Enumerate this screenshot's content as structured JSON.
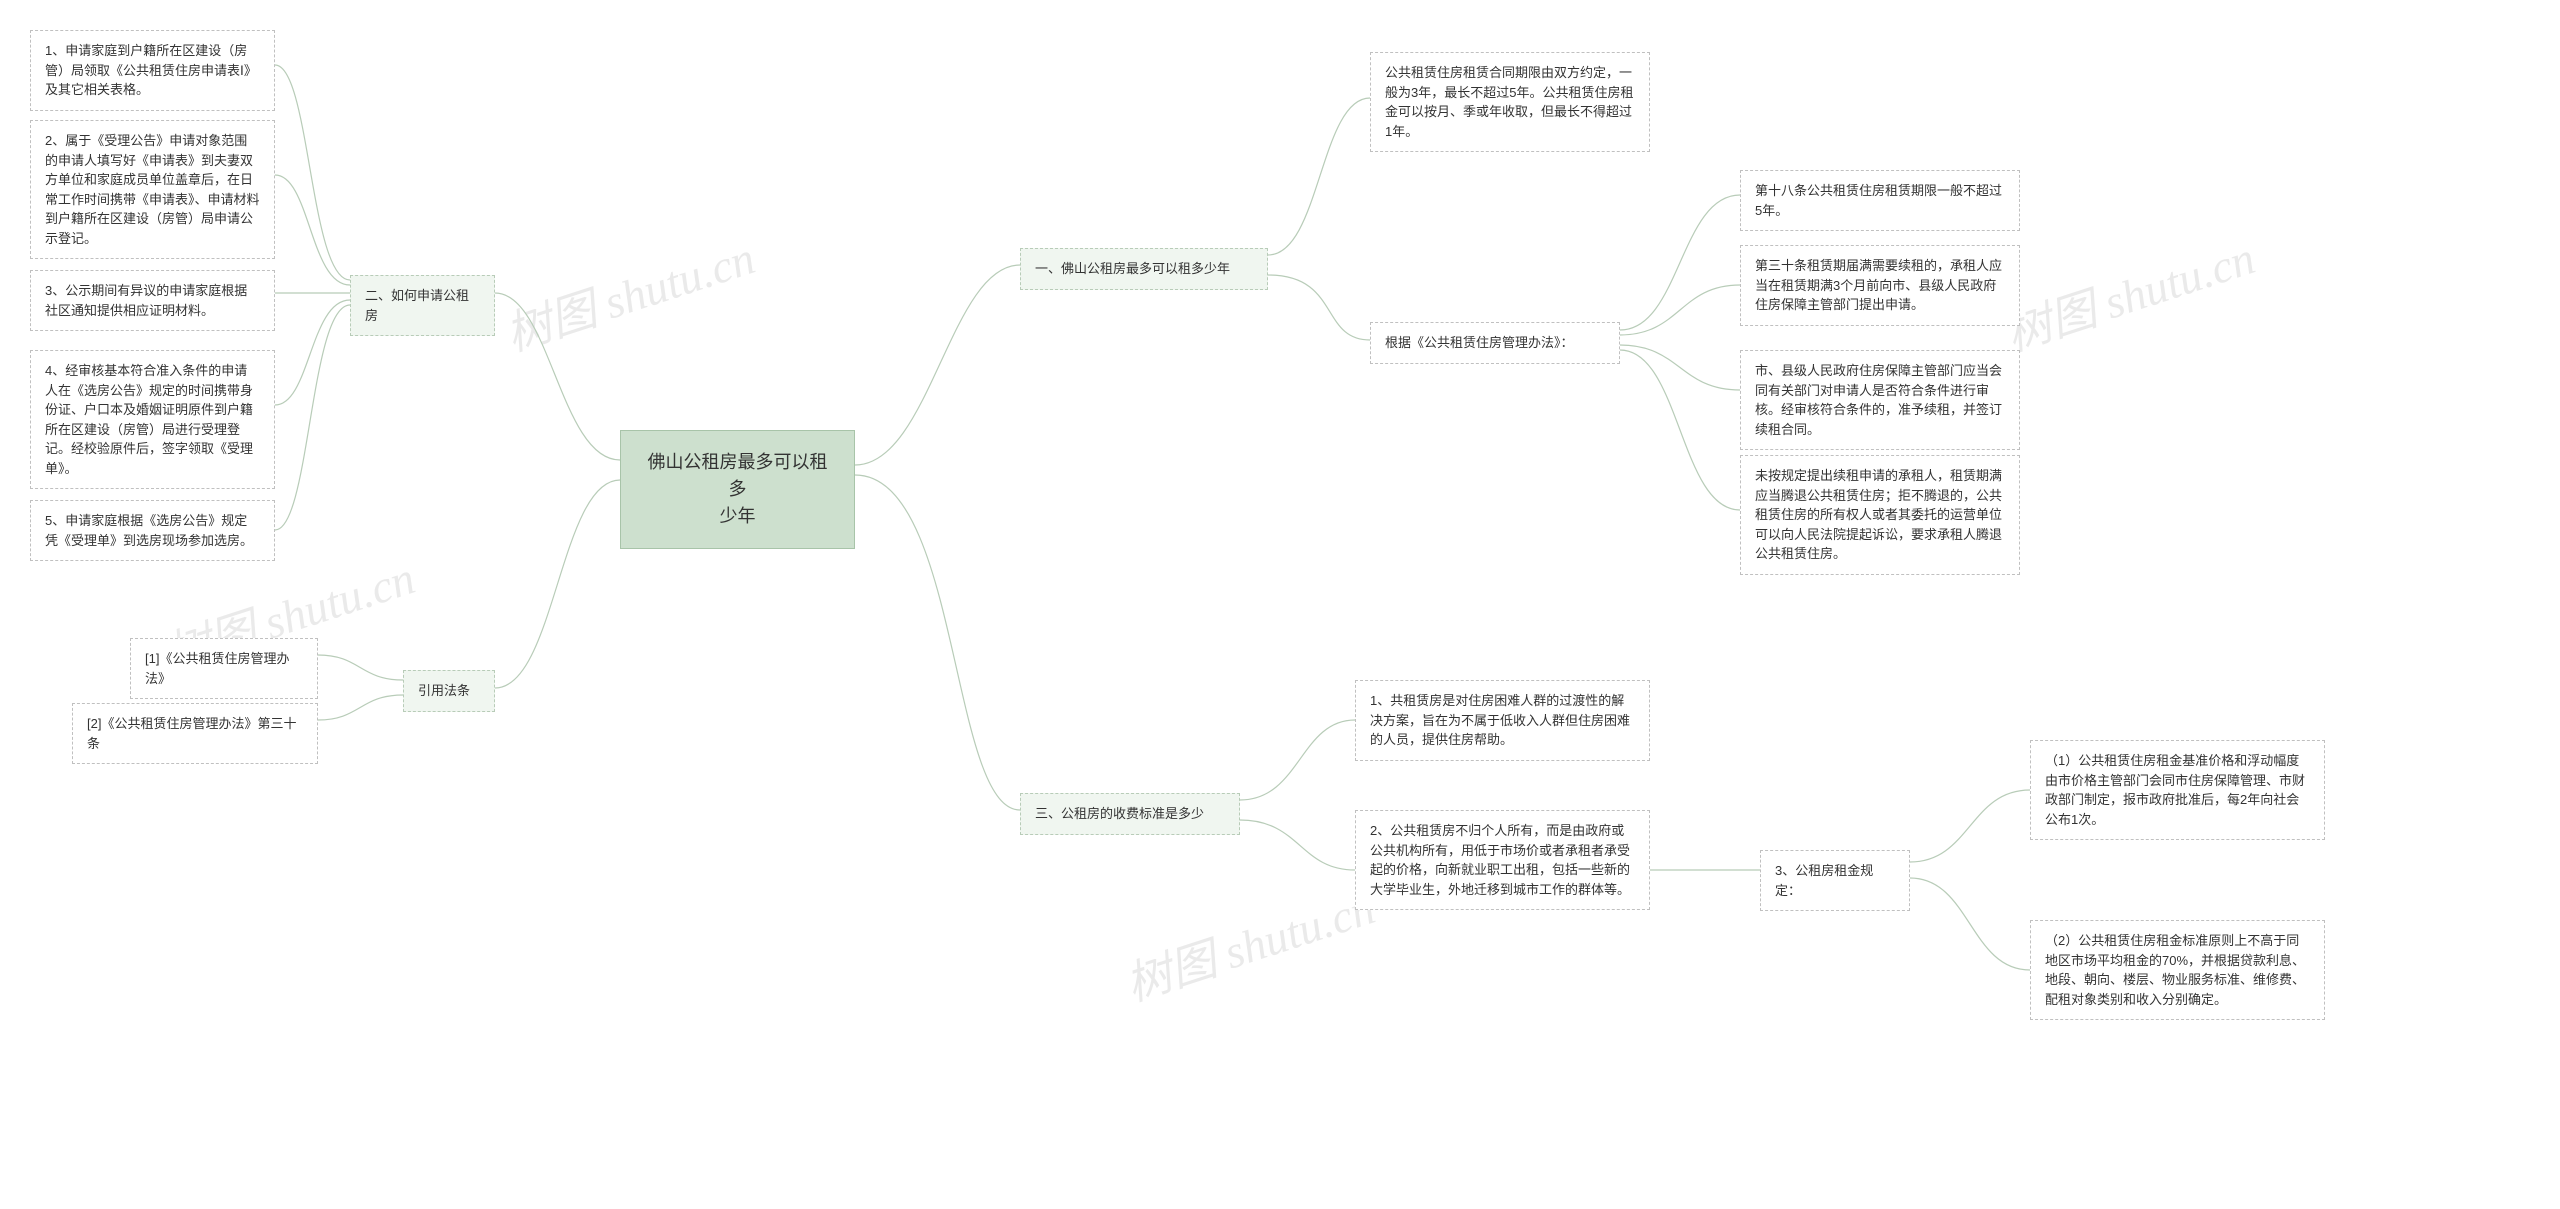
{
  "watermark_text": "树图 shutu.cn",
  "colors": {
    "center_bg": "#cde0ce",
    "center_border": "#a8c4a9",
    "branch_bg": "#f0f6f0",
    "branch_border": "#b8ccb8",
    "leaf_bg": "#ffffff",
    "leaf_border": "#c0c0c0",
    "connector": "#b8ccb8",
    "watermark": "#d9d9d9",
    "page_bg": "#ffffff",
    "text": "#333333"
  },
  "mindmap": {
    "type": "mindmap",
    "center": {
      "label": "佛山公租房最多可以租多\n少年"
    },
    "right": [
      {
        "label": "一、佛山公租房最多可以租多少年",
        "children": [
          {
            "label": "公共租赁住房租赁合同期限由双方约定，一般为3年，最长不超过5年。公共租赁住房租金可以按月、季或年收取，但最长不得超过1年。"
          },
          {
            "label": "根据《公共租赁住房管理办法》：",
            "children": [
              {
                "label": "第十八条公共租赁住房租赁期限一般不超过5年。"
              },
              {
                "label": "第三十条租赁期届满需要续租的，承租人应当在租赁期满3个月前向市、县级人民政府住房保障主管部门提出申请。"
              },
              {
                "label": "市、县级人民政府住房保障主管部门应当会同有关部门对申请人是否符合条件进行审核。经审核符合条件的，准予续租，并签订续租合同。"
              },
              {
                "label": "未按规定提出续租申请的承租人，租赁期满应当腾退公共租赁住房；拒不腾退的，公共租赁住房的所有权人或者其委托的运营单位可以向人民法院提起诉讼，要求承租人腾退公共租赁住房。"
              }
            ]
          }
        ]
      },
      {
        "label": "三、公租房的收费标准是多少",
        "children": [
          {
            "label": "1、共租赁房是对住房困难人群的过渡性的解决方案，旨在为不属于低收入人群但住房困难的人员，提供住房帮助。"
          },
          {
            "label": "2、公共租赁房不归个人所有，而是由政府或公共机构所有，用低于市场价或者承租者承受起的价格，向新就业职工出租，包括一些新的大学毕业生，外地迁移到城市工作的群体等。",
            "children": [
              {
                "label": "3、公租房租金规定：",
                "children": [
                  {
                    "label": "（1）公共租赁住房租金基准价格和浮动幅度由市价格主管部门会同市住房保障管理、市财政部门制定，报市政府批准后，每2年向社会公布1次。"
                  },
                  {
                    "label": "（2）公共租赁住房租金标准原则上不高于同地区市场平均租金的70%，并根据贷款利息、地段、朝向、楼层、物业服务标准、维修费、配租对象类别和收入分别确定。"
                  }
                ]
              }
            ]
          }
        ]
      }
    ],
    "left": [
      {
        "label": "二、如何申请公租房",
        "children": [
          {
            "label": "1、申请家庭到户籍所在区建设（房管）局领取《公共租赁住房申请表Ⅰ》及其它相关表格。"
          },
          {
            "label": "2、属于《受理公告》申请对象范围的申请人填写好《申请表》到夫妻双方单位和家庭成员单位盖章后，在日常工作时间携带《申请表》、申请材料到户籍所在区建设（房管）局申请公示登记。"
          },
          {
            "label": "3、公示期间有异议的申请家庭根据社区通知提供相应证明材料。"
          },
          {
            "label": "4、经审核基本符合准入条件的申请人在《选房公告》规定的时间携带身份证、户口本及婚姻证明原件到户籍所在区建设（房管）局进行受理登记。经校验原件后，签字领取《受理单》。"
          },
          {
            "label": "5、申请家庭根据《选房公告》规定凭《受理单》到选房现场参加选房。"
          }
        ]
      },
      {
        "label": "引用法条",
        "children": [
          {
            "label": "[1]《公共租赁住房管理办法》"
          },
          {
            "label": "[2]《公共租赁住房管理办法》第三十条"
          }
        ]
      }
    ]
  }
}
